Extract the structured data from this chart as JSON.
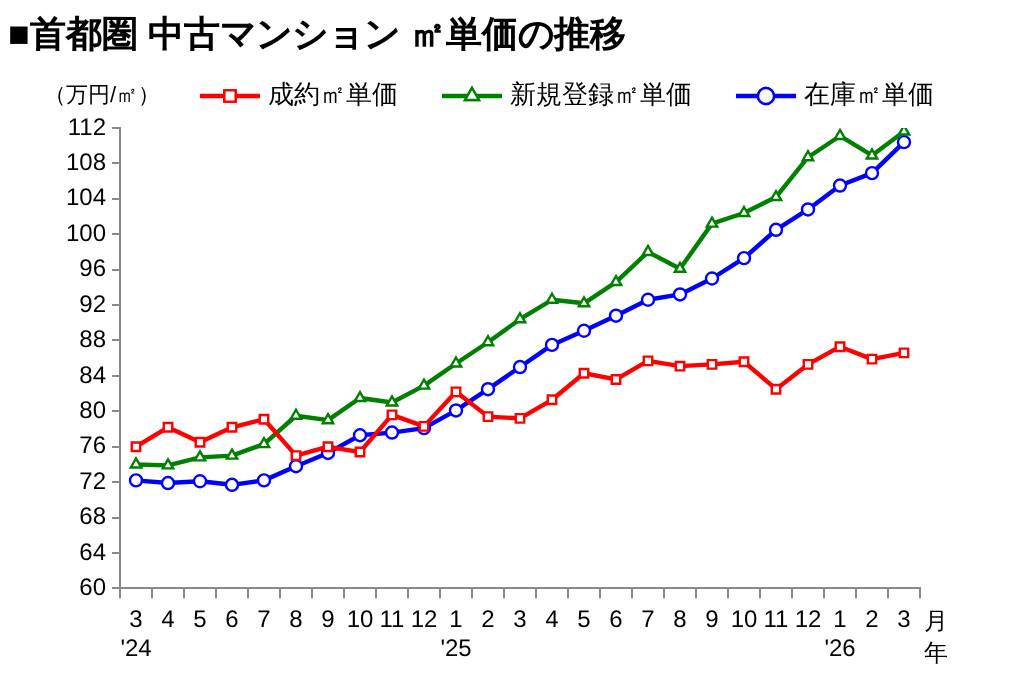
{
  "chart_data": {
    "type": "line",
    "title": "■首都圏 中古マンション ㎡単価の推移",
    "ylabel": "（万円/㎡）",
    "xlabel": "月年",
    "categories": [
      "3\n'24",
      "4",
      "5",
      "6",
      "7",
      "8",
      "9",
      "10",
      "11",
      "12",
      "1\n'25",
      "2",
      "3",
      "4",
      "5",
      "6",
      "7",
      "8",
      "9",
      "10",
      "11",
      "12",
      "1\n'26",
      "2",
      "3"
    ],
    "series": [
      {
        "name": "成約㎡単価",
        "color": "#ff0000",
        "marker": "square",
        "values": [
          76.0,
          78.2,
          76.5,
          78.2,
          79.1,
          75.0,
          76.0,
          75.4,
          79.6,
          78.3,
          82.2,
          79.4,
          79.2,
          81.3,
          84.3,
          83.6,
          85.7,
          85.1,
          85.3,
          85.6,
          82.5,
          85.3,
          87.3,
          85.9,
          86.6
        ]
      },
      {
        "name": "新規登録㎡単価",
        "color": "#008000",
        "marker": "triangle",
        "values": [
          74.0,
          73.9,
          74.8,
          75.0,
          76.3,
          79.5,
          79.0,
          81.5,
          81.0,
          82.9,
          85.4,
          87.8,
          90.4,
          92.6,
          92.2,
          94.6,
          98.0,
          96.1,
          101.2,
          102.4,
          104.2,
          108.7,
          111.1,
          108.9,
          111.6
        ]
      },
      {
        "name": "在庫㎡単価",
        "color": "#0000ff",
        "marker": "circle",
        "values": [
          72.2,
          71.9,
          72.1,
          71.7,
          72.2,
          73.8,
          75.3,
          77.3,
          77.6,
          78.1,
          80.1,
          82.5,
          85.0,
          87.5,
          89.1,
          90.8,
          92.6,
          93.2,
          95.0,
          97.3,
          100.5,
          102.8,
          105.5,
          106.9,
          110.4
        ]
      }
    ],
    "ylim": [
      60,
      112
    ],
    "yticks": [
      60,
      64,
      68,
      72,
      76,
      80,
      84,
      88,
      92,
      96,
      100,
      104,
      108,
      112
    ],
    "grid": false,
    "legend": "top",
    "line_style": "solid"
  }
}
